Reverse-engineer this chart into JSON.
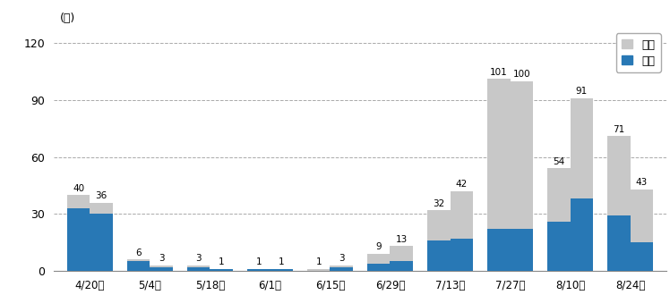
{
  "categories": [
    "4/20～",
    "5/4～",
    "5/18～",
    "6/1～",
    "6/15～",
    "6/29～",
    "7/13～",
    "7/27～",
    "8/10～",
    "8/24～"
  ],
  "bar1_total": [
    40,
    6,
    3,
    1,
    1,
    9,
    32,
    101,
    54,
    71
  ],
  "bar1_hanjou": [
    33,
    5,
    2,
    1,
    0,
    4,
    16,
    22,
    26,
    29
  ],
  "bar2_total": [
    36,
    3,
    1,
    1,
    3,
    13,
    42,
    100,
    91,
    43
  ],
  "bar2_hanjou": [
    30,
    2,
    1,
    1,
    2,
    5,
    17,
    22,
    38,
    15
  ],
  "color_hanjou": "#2878b5",
  "color_fumei": "#c8c8c8",
  "ylabel": "(人)",
  "yticks": [
    0,
    30,
    60,
    90,
    120
  ],
  "ylim": [
    0,
    128
  ],
  "legend_labels": [
    "不明",
    "判明"
  ],
  "bar_width": 0.38,
  "annotation_fontsize": 7.5,
  "tick_fontsize": 8.5
}
